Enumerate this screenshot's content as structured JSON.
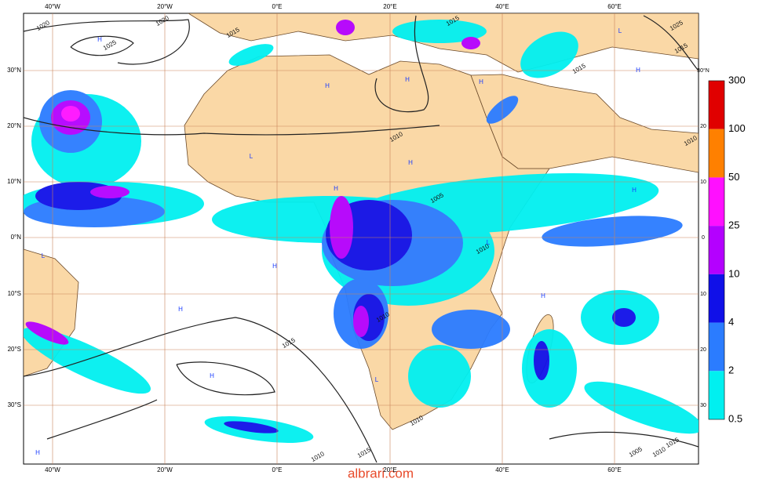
{
  "longitude_labels": [
    "40°W",
    "20°W",
    "0°E",
    "20°E",
    "40°E",
    "60°E"
  ],
  "latitude_labels": [
    "30°N",
    "20°N",
    "10°N",
    "0°N",
    "10°S",
    "20°S",
    "30°S"
  ],
  "right_latitude_labels": [
    "30°N",
    "20",
    "10",
    "0",
    "10",
    "20",
    "30"
  ],
  "legend": {
    "levels": [
      300,
      100,
      50,
      25,
      10,
      4,
      2,
      0.5
    ],
    "colors": [
      "#e00000",
      "#ff8000",
      "#ff10ff",
      "#b400ff",
      "#1010e8",
      "#2b7cff",
      "#00f0f0"
    ]
  },
  "isobar_labels": [
    "1020",
    "1020",
    "1025",
    "1015",
    "1015",
    "1025",
    "1015",
    "1015",
    "1010",
    "1005",
    "1010",
    "1010",
    "1015",
    "1010",
    "1015",
    "1010",
    "1005",
    "1010",
    "1015",
    "1010"
  ],
  "pressure_centers": [
    "H",
    "L",
    "H",
    "H",
    "H",
    "H",
    "L",
    "H",
    "H",
    "L",
    "H",
    "H",
    "H",
    "H",
    "H",
    "H",
    "L",
    "L"
  ],
  "watermark": "albrari.com"
}
